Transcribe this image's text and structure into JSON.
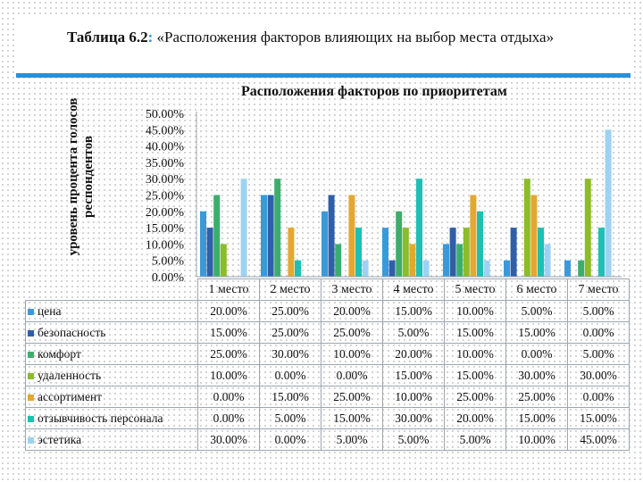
{
  "slide": {
    "title_lead": "Таблица 6.2",
    "title_colon": ":",
    "title_rest": " «Расположения факторов влияющих на выбор места отдыха»"
  },
  "chart_data": {
    "type": "bar",
    "title": "Расположения факторов по приоритетам",
    "ylabel": "уровень процента голосов респондентов",
    "xlabel": "",
    "categories": [
      "1 место",
      "2 место",
      "3 место",
      "4 место",
      "5 место",
      "6 место",
      "7 место"
    ],
    "ylim": [
      0,
      0.5
    ],
    "yticks": [
      "0.00%",
      "5.00%",
      "10.00%",
      "15.00%",
      "20.00%",
      "25.00%",
      "30.00%",
      "35.00%",
      "40.00%",
      "45.00%",
      "50.00%"
    ],
    "grid": false,
    "legend_placement": "data-table",
    "series": [
      {
        "name": "цена",
        "color": "#3a9ad9",
        "values": [
          0.2,
          0.25,
          0.2,
          0.15,
          0.1,
          0.05,
          0.05
        ],
        "labels": [
          "20.00%",
          "25.00%",
          "20.00%",
          "15.00%",
          "10.00%",
          "5.00%",
          "5.00%"
        ]
      },
      {
        "name": "безопасность",
        "color": "#2f5fa8",
        "values": [
          0.15,
          0.25,
          0.25,
          0.05,
          0.15,
          0.15,
          0.0
        ],
        "labels": [
          "15.00%",
          "25.00%",
          "25.00%",
          "5.00%",
          "15.00%",
          "15.00%",
          "0.00%"
        ]
      },
      {
        "name": "комфорт",
        "color": "#3cae6c",
        "values": [
          0.25,
          0.3,
          0.1,
          0.2,
          0.1,
          0.0,
          0.05
        ],
        "labels": [
          "25.00%",
          "30.00%",
          "10.00%",
          "20.00%",
          "10.00%",
          "0.00%",
          "5.00%"
        ]
      },
      {
        "name": "удаленность",
        "color": "#8dbb2a",
        "values": [
          0.1,
          0.0,
          0.0,
          0.15,
          0.15,
          0.3,
          0.3
        ],
        "labels": [
          "10.00%",
          "0.00%",
          "0.00%",
          "15.00%",
          "15.00%",
          "30.00%",
          "30.00%"
        ]
      },
      {
        "name": "ассортимент",
        "color": "#e3a832",
        "values": [
          0.0,
          0.15,
          0.25,
          0.1,
          0.25,
          0.25,
          0.0
        ],
        "labels": [
          "0.00%",
          "15.00%",
          "25.00%",
          "10.00%",
          "25.00%",
          "25.00%",
          "0.00%"
        ]
      },
      {
        "name": "отзывчивость персонала",
        "color": "#1fbfb4",
        "values": [
          0.0,
          0.05,
          0.15,
          0.3,
          0.2,
          0.15,
          0.15
        ],
        "labels": [
          "0.00%",
          "5.00%",
          "15.00%",
          "30.00%",
          "20.00%",
          "15.00%",
          "15.00%"
        ]
      },
      {
        "name": "эстетика",
        "color": "#9fd2f2",
        "values": [
          0.3,
          0.0,
          0.05,
          0.05,
          0.05,
          0.1,
          0.45
        ],
        "labels": [
          "30.00%",
          "0.00%",
          "5.00%",
          "5.00%",
          "5.00%",
          "10.00%",
          "45.00%"
        ]
      }
    ]
  }
}
